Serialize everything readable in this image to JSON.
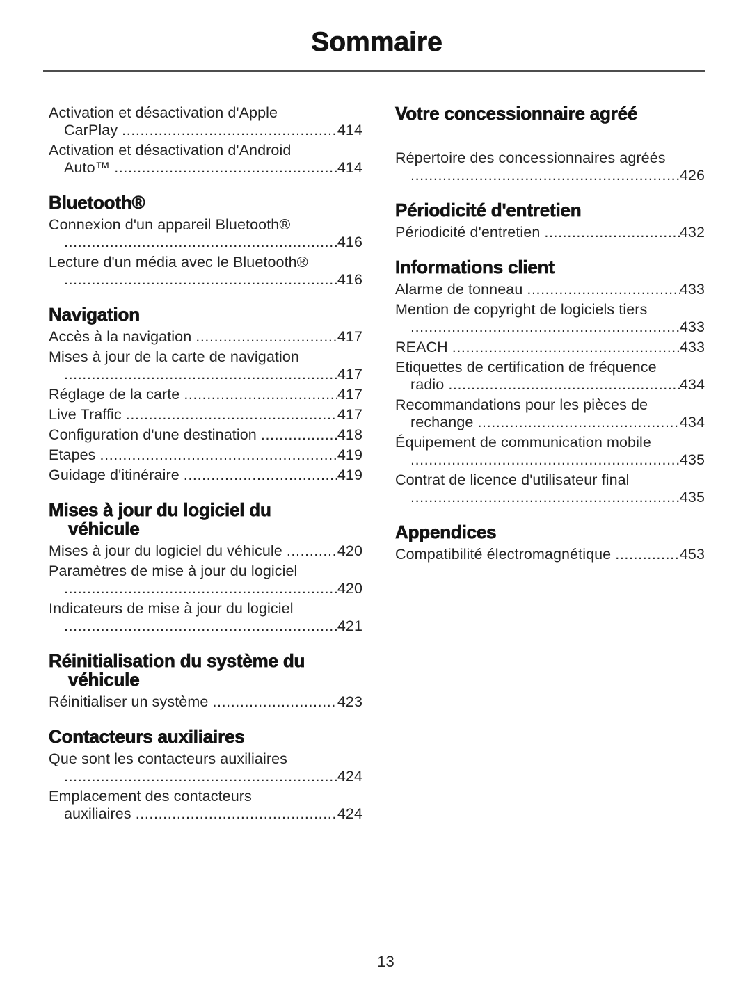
{
  "header": {
    "title": "Sommaire"
  },
  "footer": {
    "page_number": "13"
  },
  "colors": {
    "page_bg": "#ffffff",
    "text": "#242424",
    "heading": "#141414",
    "rule": "#4d4d4d"
  },
  "columns": {
    "left": {
      "sections": [
        {
          "heading_lines": [],
          "entries": [
            {
              "lines": [
                {
                  "text": "Activation et désactivation d'Apple"
                },
                {
                  "text": "CarPlay",
                  "indent": true,
                  "page": "414"
                }
              ]
            },
            {
              "lines": [
                {
                  "text": "Activation et désactivation d'Android"
                },
                {
                  "text": "Auto™",
                  "indent": true,
                  "page": "414"
                }
              ]
            }
          ]
        },
        {
          "heading_lines": [
            "Bluetooth®"
          ],
          "entries": [
            {
              "lines": [
                {
                  "text": "Connexion d'un appareil Bluetooth®"
                },
                {
                  "text": "",
                  "indent": true,
                  "page": "416"
                }
              ]
            },
            {
              "lines": [
                {
                  "text": "Lecture d'un média avec le Bluetooth®"
                },
                {
                  "text": "",
                  "indent": true,
                  "page": "416"
                }
              ]
            }
          ]
        },
        {
          "heading_lines": [
            "Navigation"
          ],
          "entries": [
            {
              "lines": [
                {
                  "text": "Accès à la navigation",
                  "page": "417"
                }
              ]
            },
            {
              "lines": [
                {
                  "text": "Mises à jour de la carte de navigation"
                },
                {
                  "text": "",
                  "indent": true,
                  "page": "417"
                }
              ]
            },
            {
              "lines": [
                {
                  "text": "Réglage de la carte",
                  "page": "417"
                }
              ]
            },
            {
              "lines": [
                {
                  "text": "Live Traffic",
                  "page": "417"
                }
              ]
            },
            {
              "lines": [
                {
                  "text": "Configuration d'une destination",
                  "page": "418"
                }
              ]
            },
            {
              "lines": [
                {
                  "text": "Etapes",
                  "page": "419"
                }
              ]
            },
            {
              "lines": [
                {
                  "text": "Guidage d'itinéraire",
                  "page": "419"
                }
              ]
            }
          ]
        },
        {
          "heading_lines": [
            "Mises à jour du logiciel du",
            "véhicule"
          ],
          "entries": [
            {
              "lines": [
                {
                  "text": "Mises à jour du logiciel du véhicule",
                  "page": "420"
                }
              ]
            },
            {
              "lines": [
                {
                  "text": "Paramètres de mise à jour du logiciel"
                },
                {
                  "text": "",
                  "indent": true,
                  "page": "420"
                }
              ]
            },
            {
              "lines": [
                {
                  "text": "Indicateurs de mise à jour du logiciel"
                },
                {
                  "text": "",
                  "indent": true,
                  "page": "421"
                }
              ]
            }
          ]
        },
        {
          "heading_lines": [
            "Réinitialisation du système du",
            "véhicule"
          ],
          "entries": [
            {
              "lines": [
                {
                  "text": "Réinitialiser un système",
                  "page": "423"
                }
              ]
            }
          ]
        },
        {
          "heading_lines": [
            "Contacteurs auxiliaires"
          ],
          "entries": [
            {
              "lines": [
                {
                  "text": "Que sont les contacteurs auxiliaires"
                },
                {
                  "text": "",
                  "indent": true,
                  "page": "424"
                }
              ]
            },
            {
              "lines": [
                {
                  "text": "Emplacement des contacteurs"
                },
                {
                  "text": "auxiliaires",
                  "indent": true,
                  "page": "424"
                }
              ]
            }
          ]
        }
      ]
    },
    "right": {
      "sections": [
        {
          "heading_lines": [
            "Votre concessionnaire agréé"
          ],
          "gap_after": true,
          "entries": [
            {
              "lines": [
                {
                  "text": "Répertoire des concessionnaires agréés"
                },
                {
                  "text": "",
                  "indent": true,
                  "page": "426"
                }
              ]
            }
          ]
        },
        {
          "heading_lines": [
            "Périodicité d'entretien"
          ],
          "entries": [
            {
              "lines": [
                {
                  "text": "Périodicité d'entretien",
                  "page": "432"
                }
              ]
            }
          ]
        },
        {
          "heading_lines": [
            "Informations client"
          ],
          "entries": [
            {
              "lines": [
                {
                  "text": "Alarme de tonneau",
                  "page": "433"
                }
              ]
            },
            {
              "lines": [
                {
                  "text": "Mention de copyright de logiciels tiers"
                },
                {
                  "text": "",
                  "indent": true,
                  "page": "433"
                }
              ]
            },
            {
              "lines": [
                {
                  "text": "REACH",
                  "page": "433"
                }
              ]
            },
            {
              "lines": [
                {
                  "text": "Etiquettes de certification de fréquence"
                },
                {
                  "text": "radio",
                  "indent": true,
                  "page": "434"
                }
              ]
            },
            {
              "lines": [
                {
                  "text": "Recommandations pour les pièces de"
                },
                {
                  "text": "rechange",
                  "indent": true,
                  "page": "434"
                }
              ]
            },
            {
              "lines": [
                {
                  "text": "Équipement de communication mobile"
                },
                {
                  "text": "",
                  "indent": true,
                  "page": "435"
                }
              ]
            },
            {
              "lines": [
                {
                  "text": "Contrat de licence d'utilisateur final"
                },
                {
                  "text": "",
                  "indent": true,
                  "page": "435"
                }
              ]
            }
          ]
        },
        {
          "heading_lines": [
            "Appendices"
          ],
          "entries": [
            {
              "lines": [
                {
                  "text": "Compatibilité électromagnétique",
                  "page": "453"
                }
              ]
            }
          ]
        }
      ]
    }
  }
}
